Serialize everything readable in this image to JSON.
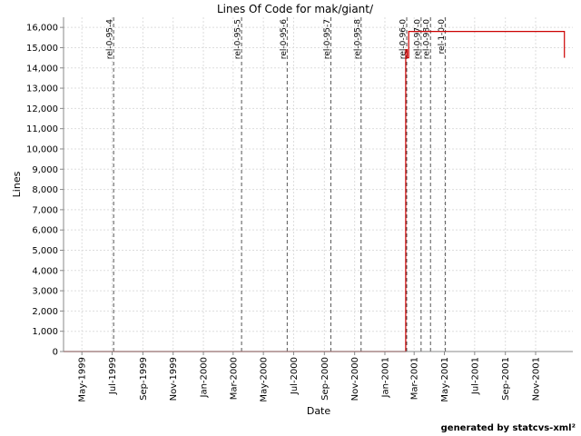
{
  "chart_data": {
    "type": "line",
    "title": "Lines Of Code for mak/giant/",
    "xlabel": "Date",
    "ylabel": "Lines",
    "xlim": [
      "1999-03-25",
      "2002-01-15"
    ],
    "ylim": [
      0,
      16500
    ],
    "yticks": [
      0,
      1000,
      2000,
      3000,
      4000,
      5000,
      6000,
      7000,
      8000,
      9000,
      10000,
      11000,
      12000,
      13000,
      14000,
      15000,
      16000
    ],
    "ytick_labels": [
      "0",
      "1,000",
      "2,000",
      "3,000",
      "4,000",
      "5,000",
      "6,000",
      "7,000",
      "8,000",
      "9,000",
      "10,000",
      "11,000",
      "12,000",
      "13,000",
      "14,000",
      "15,000",
      "16,000"
    ],
    "xticks": [
      "1999-05-01",
      "1999-07-01",
      "1999-09-01",
      "1999-11-01",
      "2000-01-01",
      "2000-03-01",
      "2000-05-01",
      "2000-07-01",
      "2000-09-01",
      "2000-11-01",
      "2001-01-01",
      "2001-03-01",
      "2001-05-01",
      "2001-07-01",
      "2001-09-01",
      "2001-11-01"
    ],
    "xtick_labels": [
      "May-1999",
      "Jul-1999",
      "Sep-1999",
      "Nov-1999",
      "Jan-2000",
      "Mar-2000",
      "May-2000",
      "Jul-2000",
      "Sep-2000",
      "Nov-2000",
      "Jan-2001",
      "Mar-2001",
      "May-2001",
      "Jul-2001",
      "Sep-2001",
      "Nov-2001"
    ],
    "grid": true,
    "series": [
      {
        "color": "#cc0000",
        "points": [
          [
            "1999-03-25",
            0
          ],
          [
            "2001-02-12",
            0
          ],
          [
            "2001-02-12",
            14900
          ],
          [
            "2001-02-15",
            14900
          ],
          [
            "2001-02-15",
            14500
          ],
          [
            "2001-02-18",
            14500
          ],
          [
            "2001-02-18",
            15800
          ],
          [
            "2001-12-29",
            15800
          ],
          [
            "2001-12-29",
            14500
          ]
        ]
      }
    ],
    "releases": [
      {
        "label": "rel-0-95-4",
        "date": "1999-07-04"
      },
      {
        "label": "rel-0-95-5",
        "date": "2000-03-18"
      },
      {
        "label": "rel-0-95-6",
        "date": "2000-06-18"
      },
      {
        "label": "rel-0-95-7",
        "date": "2000-09-14"
      },
      {
        "label": "rel-0-95-8",
        "date": "2000-11-14"
      },
      {
        "label": "rel-0-96-0",
        "date": "2001-02-14"
      },
      {
        "label": "rel-0-97-0",
        "date": "2001-03-15"
      },
      {
        "label": "rel-0-98-0",
        "date": "2001-04-03"
      },
      {
        "label": "rel-1-0-0",
        "date": "2001-05-03"
      }
    ],
    "colors": {
      "line": "#cc0000",
      "grid": "#dddddd",
      "release": "#555555",
      "axis": "#888888"
    }
  },
  "footer": "generated by statcvs-xml²"
}
